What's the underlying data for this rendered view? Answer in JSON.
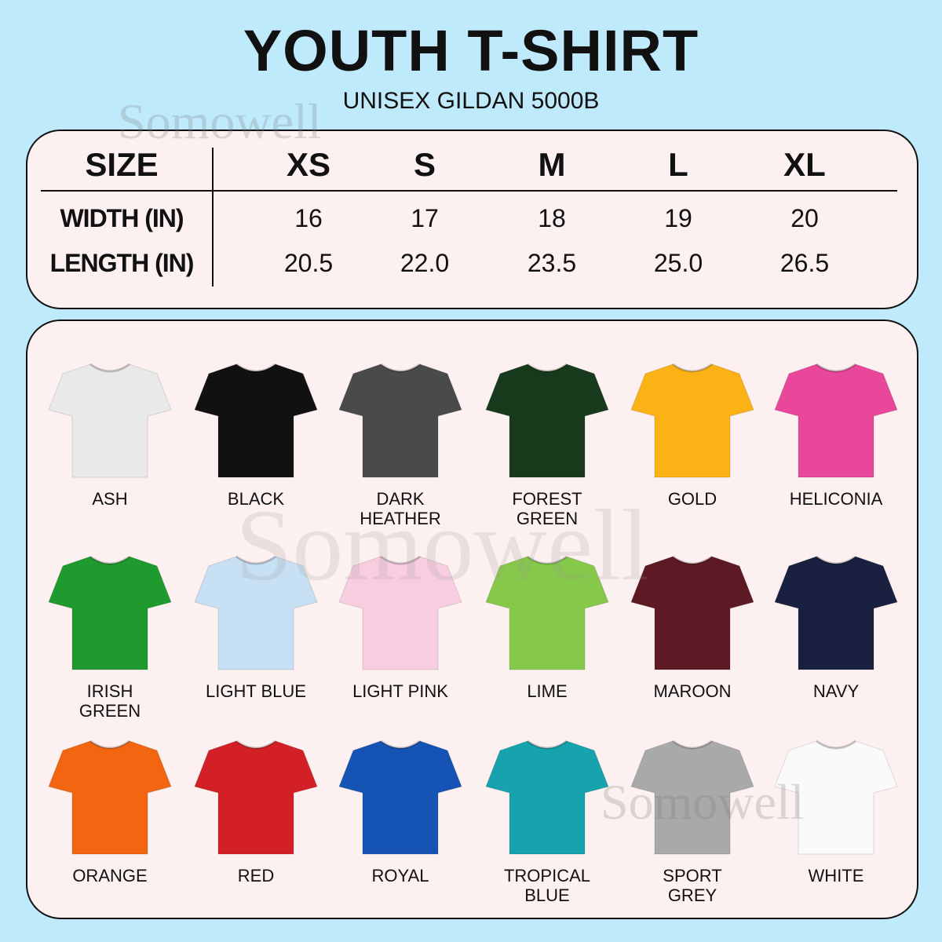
{
  "header": {
    "title": "YOUTH T-SHIRT",
    "subtitle": "UNISEX GILDAN 5000B"
  },
  "watermark": "Somowell",
  "size_table": {
    "header_label": "SIZE",
    "sizes": [
      "XS",
      "S",
      "M",
      "L",
      "XL"
    ],
    "rows": [
      {
        "label": "WIDTH (IN)",
        "values": [
          "16",
          "17",
          "18",
          "19",
          "20"
        ]
      },
      {
        "label": "LENGTH (IN)",
        "values": [
          "20.5",
          "22.0",
          "23.5",
          "25.0",
          "26.5"
        ]
      }
    ]
  },
  "colors": [
    {
      "name": "ASH",
      "hex": "#e9e9e9"
    },
    {
      "name": "BLACK",
      "hex": "#111111"
    },
    {
      "name": "DARK HEATHER",
      "hex": "#4a4a4a"
    },
    {
      "name": "FOREST GREEN",
      "hex": "#173a1c"
    },
    {
      "name": "GOLD",
      "hex": "#fbb214"
    },
    {
      "name": "HELICONIA",
      "hex": "#e8479a"
    },
    {
      "name": "IRISH GREEN",
      "hex": "#1f9a2e"
    },
    {
      "name": "LIGHT BLUE",
      "hex": "#c7e0f4"
    },
    {
      "name": "LIGHT PINK",
      "hex": "#f8cde0"
    },
    {
      "name": "LIME",
      "hex": "#86c94a"
    },
    {
      "name": "MAROON",
      "hex": "#5e1a24"
    },
    {
      "name": "NAVY",
      "hex": "#1a2140"
    },
    {
      "name": "ORANGE",
      "hex": "#f26511"
    },
    {
      "name": "RED",
      "hex": "#d31f26"
    },
    {
      "name": "ROYAL",
      "hex": "#1553b4"
    },
    {
      "name": "TROPICAL BLUE",
      "hex": "#16a3ae"
    },
    {
      "name": "SPORT GREY",
      "hex": "#a9a9a9"
    },
    {
      "name": "WHITE",
      "hex": "#fafafa"
    }
  ]
}
